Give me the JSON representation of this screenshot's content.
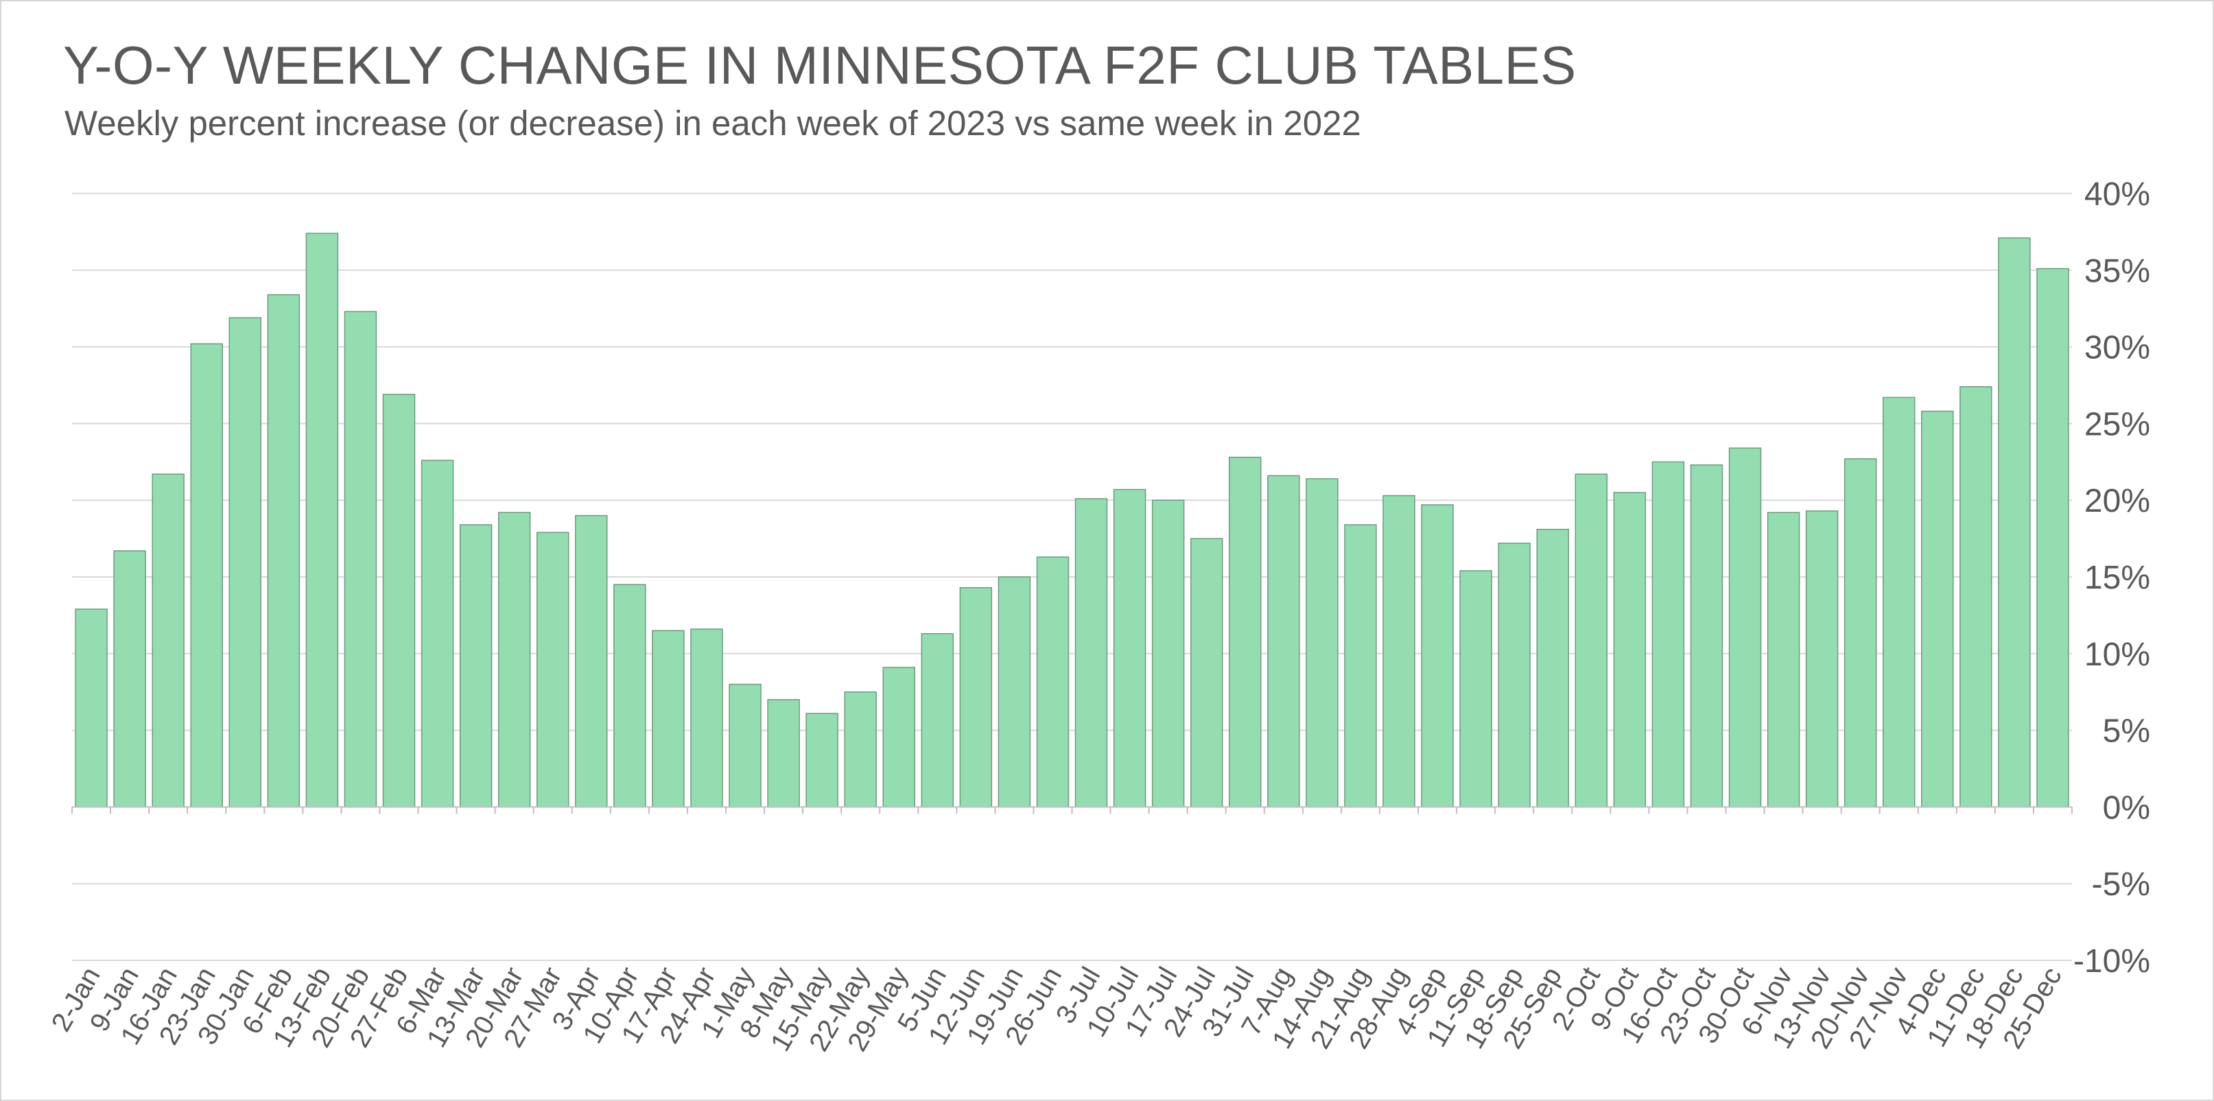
{
  "chart_data": {
    "type": "bar",
    "title": "Y-O-Y WEEKLY CHANGE IN MINNESOTA F2F CLUB TABLES",
    "subtitle": "Weekly percent increase (or decrease) in each week of 2023 vs same week in 2022",
    "xlabel": "",
    "ylabel": "",
    "ylim": [
      -10,
      40
    ],
    "y_ticks": [
      40,
      35,
      30,
      25,
      20,
      15,
      10,
      5,
      0,
      -5,
      -10
    ],
    "y_tick_suffix": "%",
    "y_axis_position": "right",
    "grid": true,
    "legend": "none",
    "bar_color": "#93DDB1",
    "bar_edge_color": "#6f9a80",
    "categories": [
      "2-Jan",
      "9-Jan",
      "16-Jan",
      "23-Jan",
      "30-Jan",
      "6-Feb",
      "13-Feb",
      "20-Feb",
      "27-Feb",
      "6-Mar",
      "13-Mar",
      "20-Mar",
      "27-Mar",
      "3-Apr",
      "10-Apr",
      "17-Apr",
      "24-Apr",
      "1-May",
      "8-May",
      "15-May",
      "22-May",
      "29-May",
      "5-Jun",
      "12-Jun",
      "19-Jun",
      "26-Jun",
      "3-Jul",
      "10-Jul",
      "17-Jul",
      "24-Jul",
      "31-Jul",
      "7-Aug",
      "14-Aug",
      "21-Aug",
      "28-Aug",
      "4-Sep",
      "11-Sep",
      "18-Sep",
      "25-Sep",
      "2-Oct",
      "9-Oct",
      "16-Oct",
      "23-Oct",
      "30-Oct",
      "6-Nov",
      "13-Nov",
      "20-Nov",
      "27-Nov",
      "4-Dec",
      "11-Dec",
      "18-Dec",
      "25-Dec"
    ],
    "values": [
      12.9,
      16.7,
      21.7,
      30.2,
      31.9,
      33.4,
      37.4,
      32.3,
      26.9,
      22.6,
      18.4,
      19.2,
      17.9,
      19.0,
      14.5,
      11.5,
      11.6,
      8.0,
      7.0,
      6.1,
      7.5,
      9.1,
      11.3,
      14.3,
      15.0,
      16.3,
      20.1,
      20.7,
      20.0,
      17.5,
      22.8,
      21.6,
      21.4,
      18.4,
      20.3,
      19.7,
      15.4,
      17.2,
      18.1,
      21.7,
      20.5,
      22.5,
      22.3,
      23.4,
      19.2,
      19.3,
      22.7,
      26.7,
      25.8,
      27.4,
      37.1,
      35.1
    ]
  }
}
